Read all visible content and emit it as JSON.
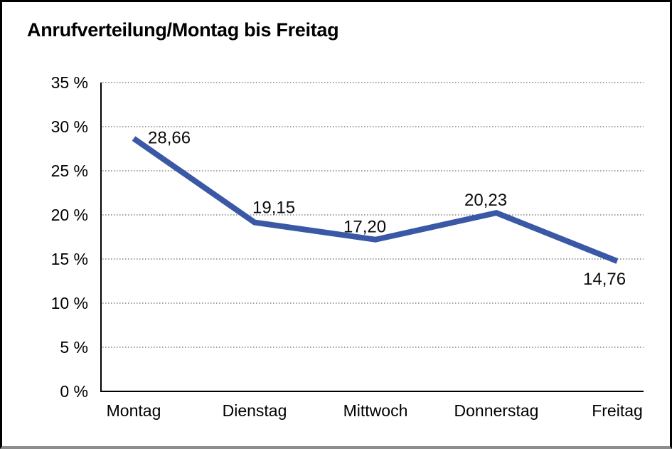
{
  "frame": {
    "background": "#ffffff",
    "border_color": "#000000",
    "bottom_edge_color": "#8c8c8c"
  },
  "chart_data": {
    "type": "line",
    "title": "Anrufverteilung/Montag bis Freitag",
    "categories": [
      "Montag",
      "Dienstag",
      "Mittwoch",
      "Donnerstag",
      "Freitag"
    ],
    "series": [
      {
        "name": "Anrufverteilung",
        "values": [
          28.66,
          19.15,
          17.2,
          20.23,
          14.76
        ]
      }
    ],
    "point_labels": [
      "28,66",
      "19,15",
      "17,20",
      "20,23",
      "14,76"
    ],
    "xlabel": "",
    "ylabel": "",
    "ylim": [
      0,
      35
    ],
    "ytick_step": 5,
    "yticks": [
      "0 %",
      "5 %",
      "10 %",
      "15 %",
      "20 %",
      "25 %",
      "30 %",
      "35 %"
    ],
    "grid": "horizontal-dotted",
    "legend": "none",
    "line_color": "#3A58A5",
    "line_width": 8
  }
}
